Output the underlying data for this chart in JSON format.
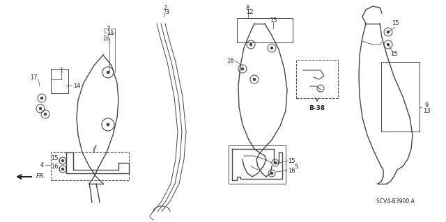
{
  "bg_color": "#ffffff",
  "line_color": "#444444",
  "title_text": "SCV4-B3900 A",
  "fr_label": "FR.",
  "b38_label": "B-38",
  "figsize": [
    6.4,
    3.19
  ],
  "dpi": 100,
  "xlim": [
    0,
    640
  ],
  "ylim": [
    0,
    319
  ]
}
